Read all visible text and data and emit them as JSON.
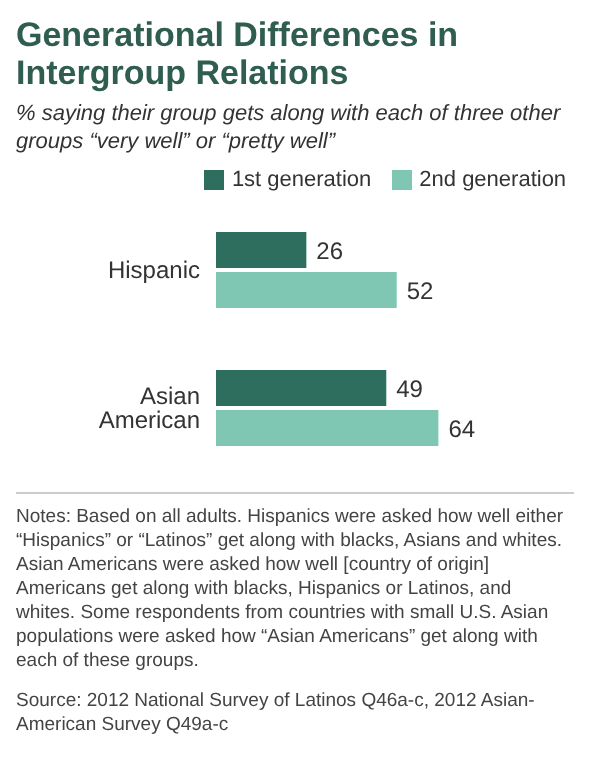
{
  "chart_data": {
    "type": "bar",
    "orientation": "horizontal",
    "title": "Generational Differences in Intergroup Relations",
    "subtitle": "% saying their group gets along with each of three other groups “very well” or “pretty well”",
    "categories": [
      "Hispanic",
      "Asian American"
    ],
    "series": [
      {
        "name": "1st generation",
        "color": "#2d6e5f",
        "values": [
          26,
          49
        ]
      },
      {
        "name": "2nd generation",
        "color": "#7fc7b2",
        "values": [
          52,
          64
        ]
      }
    ],
    "data_labels": true,
    "legend": "top",
    "grid": false,
    "annotations": [
      "Notes: Based on all adults. Hispanics were asked how well either “Hispanics” or “Latinos” get along with blacks, Asians and whites. Asian Americans were asked how well [country of origin] Americans get along with blacks, Hispanics or Latinos, and whites. Some respondents from countries with small U.S. Asian populations were asked how “Asian Americans” get along with each of these groups.",
      "Source: 2012 National Survey of Latinos Q46a-c, 2012 Asian-American Survey Q49a-c"
    ]
  }
}
